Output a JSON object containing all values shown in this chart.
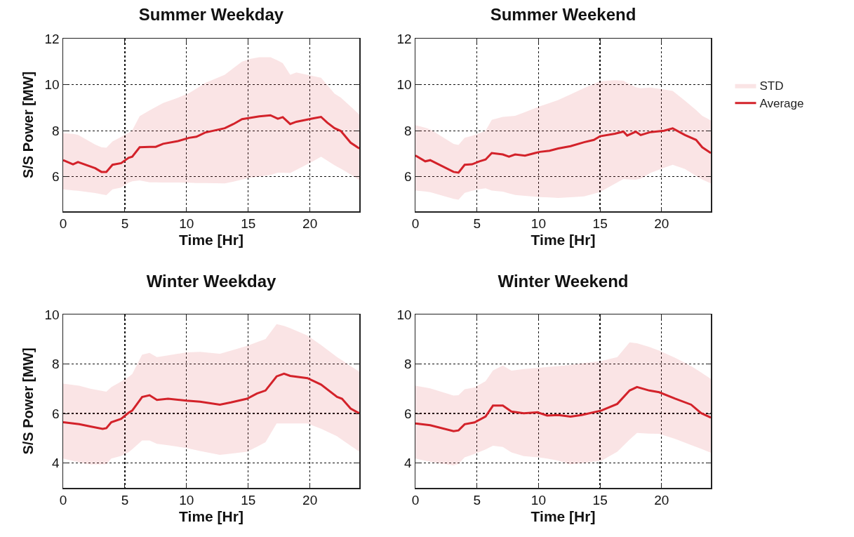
{
  "chart_data": [
    {
      "type": "line",
      "title": "Summer Weekday",
      "xlabel": "Time [Hr]",
      "ylabel": "S/S Power [MW]",
      "xlim": [
        0,
        24
      ],
      "xticks": [
        0,
        5,
        10,
        15,
        20
      ],
      "ylim": [
        4.5,
        12
      ],
      "yticks": [
        6,
        8,
        10,
        12
      ],
      "grid": true,
      "legend": false,
      "series": [
        {
          "color": "#d3222a",
          "x": [
            0,
            0.8,
            1.2,
            2.6,
            3.1,
            3.5,
            4.0,
            4.7,
            5.3,
            5.6,
            6.2,
            7.0,
            7.5,
            8.1,
            9.3,
            10.2,
            10.8,
            11.5,
            13.1,
            13.8,
            14.5,
            15.2,
            15.9,
            16.8,
            17.4,
            17.8,
            18.4,
            18.9,
            20.3,
            20.9,
            21.4,
            22.0,
            22.5,
            23.3,
            24
          ],
          "values": [
            6.72,
            6.54,
            6.64,
            6.37,
            6.21,
            6.21,
            6.52,
            6.59,
            6.82,
            6.87,
            7.28,
            7.3,
            7.3,
            7.43,
            7.55,
            7.69,
            7.74,
            7.92,
            8.11,
            8.29,
            8.5,
            8.56,
            8.62,
            8.67,
            8.52,
            8.59,
            8.29,
            8.39,
            8.54,
            8.6,
            8.35,
            8.11,
            7.99,
            7.48,
            7.23
          ],
          "lower": [
            5.45,
            5.41,
            5.39,
            5.29,
            5.24,
            5.2,
            5.45,
            5.53,
            5.74,
            5.8,
            5.84,
            5.76,
            5.76,
            5.75,
            5.75,
            5.74,
            5.73,
            5.73,
            5.71,
            5.79,
            5.88,
            5.96,
            6.01,
            6.08,
            6.18,
            6.18,
            6.16,
            6.3,
            6.69,
            6.87,
            6.7,
            6.5,
            6.35,
            6.1,
            5.86
          ],
          "upper": [
            7.89,
            7.86,
            7.82,
            7.4,
            7.28,
            7.26,
            7.53,
            7.73,
            7.91,
            8.01,
            8.63,
            8.88,
            9.03,
            9.2,
            9.43,
            9.63,
            9.83,
            10.07,
            10.43,
            10.72,
            11.0,
            11.12,
            11.19,
            11.19,
            11.05,
            10.93,
            10.43,
            10.53,
            10.37,
            10.3,
            9.99,
            9.61,
            9.44,
            9.05,
            8.7
          ]
        }
      ]
    },
    {
      "type": "line",
      "title": "Summer Weekend",
      "xlabel": "Time [Hr]",
      "xlim": [
        0,
        24
      ],
      "xticks": [
        0,
        5,
        10,
        15,
        20
      ],
      "ylim": [
        4.5,
        12
      ],
      "yticks": [
        6,
        8,
        10,
        12
      ],
      "grid": true,
      "legend": "right",
      "series": [
        {
          "name": "Average",
          "color": "#d3222a",
          "x": [
            0,
            0.8,
            1.2,
            3.1,
            3.5,
            4.0,
            4.6,
            5.2,
            5.7,
            6.2,
            7.1,
            7.6,
            8.1,
            8.9,
            10.1,
            10.9,
            11.6,
            12.6,
            13.7,
            14.5,
            15.0,
            16.2,
            16.9,
            17.2,
            17.9,
            18.3,
            19.1,
            20.2,
            20.9,
            21.9,
            22.8,
            23.3,
            24
          ],
          "values": [
            6.92,
            6.67,
            6.72,
            6.21,
            6.18,
            6.52,
            6.54,
            6.67,
            6.75,
            7.03,
            6.97,
            6.87,
            6.97,
            6.92,
            7.08,
            7.13,
            7.23,
            7.33,
            7.5,
            7.6,
            7.76,
            7.87,
            7.96,
            7.79,
            7.96,
            7.81,
            7.94,
            8.0,
            8.1,
            7.81,
            7.6,
            7.28,
            7.03
          ],
          "lower": [
            5.4,
            5.36,
            5.33,
            5.04,
            5.0,
            5.3,
            5.39,
            5.46,
            5.5,
            5.4,
            5.35,
            5.28,
            5.21,
            5.17,
            5.12,
            5.1,
            5.08,
            5.11,
            5.15,
            5.26,
            5.34,
            5.7,
            5.9,
            5.89,
            5.87,
            5.92,
            6.17,
            6.39,
            6.52,
            6.34,
            6.04,
            5.88,
            5.71
          ],
          "upper": [
            8.24,
            8.13,
            8.06,
            7.43,
            7.38,
            7.69,
            7.78,
            7.89,
            8.0,
            8.47,
            8.6,
            8.62,
            8.65,
            8.81,
            9.06,
            9.2,
            9.33,
            9.58,
            9.85,
            10.03,
            10.15,
            10.19,
            10.17,
            10.08,
            9.89,
            9.84,
            9.87,
            9.79,
            9.73,
            9.3,
            8.9,
            8.65,
            8.45
          ]
        },
        {
          "name": "STD",
          "type": "area",
          "color": "#fae4e5"
        }
      ]
    },
    {
      "type": "line",
      "title": "Winter Weekday",
      "xlabel": "Time [Hr]",
      "ylabel": "S/S Power [MW]",
      "xlim": [
        0,
        24
      ],
      "xticks": [
        0,
        5,
        10,
        15,
        20
      ],
      "ylim": [
        3,
        10
      ],
      "yticks": [
        4,
        6,
        8,
        10
      ],
      "grid": true,
      "legend": false,
      "series": [
        {
          "color": "#d3222a",
          "x": [
            0,
            1.3,
            2.2,
            3.2,
            3.5,
            3.9,
            4.7,
            5.3,
            5.6,
            6.4,
            7.0,
            7.6,
            8.5,
            10.0,
            11.1,
            12.7,
            13.6,
            14.9,
            15.7,
            16.4,
            17.3,
            17.9,
            18.4,
            19.8,
            20.9,
            22.2,
            22.6,
            23.3,
            24
          ],
          "values": [
            5.65,
            5.57,
            5.48,
            5.38,
            5.41,
            5.65,
            5.79,
            6.03,
            6.12,
            6.67,
            6.74,
            6.55,
            6.6,
            6.52,
            6.48,
            6.36,
            6.45,
            6.6,
            6.81,
            6.93,
            7.5,
            7.61,
            7.52,
            7.43,
            7.17,
            6.67,
            6.6,
            6.2,
            6.01
          ],
          "lower": [
            4.18,
            4.03,
            3.94,
            3.95,
            3.96,
            4.18,
            4.29,
            4.44,
            4.56,
            4.91,
            4.91,
            4.78,
            4.72,
            4.61,
            4.49,
            4.33,
            4.38,
            4.46,
            4.66,
            4.84,
            5.6,
            5.6,
            5.6,
            5.6,
            5.39,
            5.08,
            4.94,
            4.7,
            4.46
          ],
          "upper": [
            7.21,
            7.12,
            7.0,
            6.91,
            6.88,
            7.07,
            7.29,
            7.48,
            7.6,
            8.38,
            8.45,
            8.28,
            8.35,
            8.47,
            8.49,
            8.41,
            8.54,
            8.73,
            8.88,
            9.01,
            9.61,
            9.54,
            9.45,
            9.15,
            8.77,
            8.28,
            8.15,
            7.92,
            7.69
          ]
        }
      ]
    },
    {
      "type": "line",
      "title": "Winter Weekend",
      "xlabel": "Time [Hr]",
      "xlim": [
        0,
        24
      ],
      "xticks": [
        0,
        5,
        10,
        15,
        20
      ],
      "ylim": [
        3,
        10
      ],
      "yticks": [
        4,
        6,
        8,
        10
      ],
      "grid": true,
      "legend": false,
      "series": [
        {
          "color": "#d3222a",
          "x": [
            0,
            1.2,
            3.1,
            3.5,
            4.0,
            4.8,
            5.7,
            6.3,
            7.1,
            7.8,
            8.8,
            9.9,
            10.7,
            11.6,
            12.6,
            13.5,
            15.1,
            16.4,
            17.4,
            18.0,
            19.0,
            19.8,
            21.1,
            22.4,
            23.2,
            24
          ],
          "values": [
            5.6,
            5.53,
            5.29,
            5.32,
            5.57,
            5.64,
            5.88,
            6.32,
            6.32,
            6.08,
            6.01,
            6.05,
            5.92,
            5.94,
            5.88,
            5.94,
            6.12,
            6.39,
            6.93,
            7.07,
            6.93,
            6.86,
            6.6,
            6.36,
            6.02,
            5.84
          ],
          "lower": [
            4.18,
            4.05,
            3.91,
            3.97,
            4.23,
            4.37,
            4.55,
            4.7,
            4.65,
            4.43,
            4.28,
            4.24,
            4.18,
            4.1,
            3.95,
            4.0,
            4.09,
            4.46,
            4.95,
            5.22,
            5.19,
            5.18,
            4.98,
            4.73,
            4.58,
            4.42
          ],
          "upper": [
            7.12,
            7.02,
            6.73,
            6.74,
            6.98,
            7.05,
            7.31,
            7.74,
            7.94,
            7.73,
            7.8,
            7.84,
            7.88,
            7.92,
            7.97,
            8.02,
            8.12,
            8.28,
            8.87,
            8.84,
            8.69,
            8.54,
            8.25,
            7.92,
            7.66,
            7.4
          ]
        }
      ]
    }
  ]
}
